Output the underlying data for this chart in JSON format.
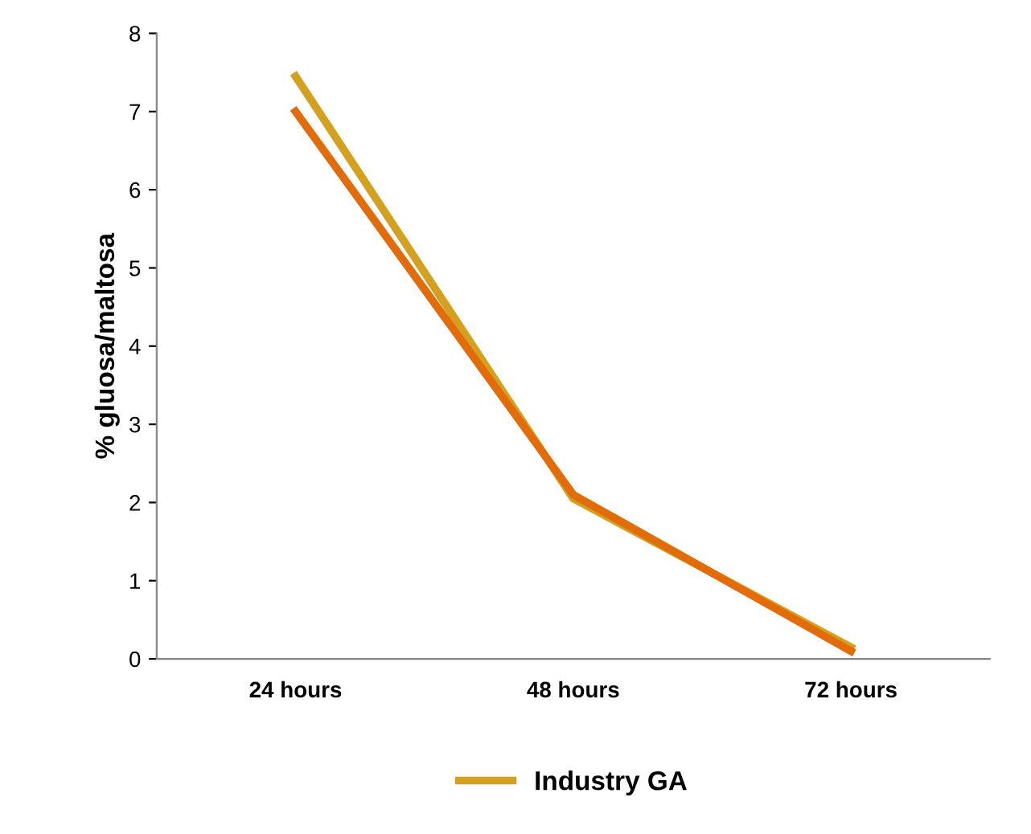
{
  "chart_data": {
    "type": "line",
    "ylabel": "% gluosa/maltosa",
    "categories": [
      "24 hours",
      "48 hours",
      "72 hours"
    ],
    "series": [
      {
        "name": "Industry GA",
        "color": "#d4a020",
        "values": [
          7.45,
          2.05,
          0.15
        ]
      },
      {
        "color": "#e36c0a",
        "values": [
          7.0,
          2.1,
          0.1
        ]
      }
    ],
    "ylim": [
      0,
      8
    ],
    "yticks": [
      0,
      1,
      2,
      3,
      4,
      5,
      6,
      7,
      8
    ],
    "grid": false,
    "legend": "bottom",
    "marker": "none",
    "line_style": "solid"
  }
}
